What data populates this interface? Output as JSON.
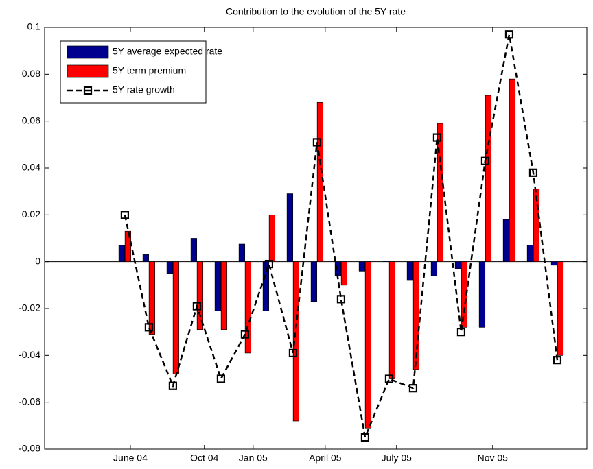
{
  "chart_data": {
    "type": "bar",
    "title": "Contribution to the evolution of the 5Y rate",
    "x": [
      1,
      2,
      3,
      4,
      5,
      6,
      7,
      8,
      9,
      10,
      11,
      12,
      13,
      14,
      15,
      16,
      17,
      18,
      19
    ],
    "series": [
      {
        "name": "5Y average expected rate",
        "color": "#00008f",
        "type": "bar",
        "values": [
          0.007,
          0.003,
          -0.005,
          0.01,
          -0.021,
          0.0075,
          -0.021,
          0.029,
          -0.017,
          -0.006,
          -0.004,
          0.0003,
          -0.008,
          -0.006,
          -0.003,
          -0.028,
          0.018,
          0.007,
          -0.0015
        ]
      },
      {
        "name": "5Y term premium",
        "color": "#ff0000",
        "type": "bar",
        "values": [
          0.013,
          -0.031,
          -0.048,
          -0.029,
          -0.029,
          -0.039,
          0.02,
          -0.068,
          0.068,
          -0.01,
          -0.071,
          -0.05,
          -0.046,
          0.059,
          -0.028,
          0.071,
          0.078,
          0.031,
          -0.04
        ]
      },
      {
        "name": "5Y rate growth",
        "color": "#000000",
        "type": "line",
        "values": [
          0.02,
          -0.028,
          -0.053,
          -0.019,
          -0.05,
          -0.031,
          -0.001,
          -0.039,
          0.051,
          -0.016,
          -0.075,
          -0.05,
          -0.054,
          0.053,
          -0.03,
          0.043,
          0.097,
          0.038,
          -0.042
        ]
      }
    ],
    "xlim": [
      -2.34,
      20.23
    ],
    "xticks": [
      {
        "value": 1.23,
        "label": "June 04"
      },
      {
        "value": 4.31,
        "label": "Oct 04"
      },
      {
        "value": 6.34,
        "label": "Jan 05"
      },
      {
        "value": 9.34,
        "label": "April 05"
      },
      {
        "value": 12.31,
        "label": "July 05"
      },
      {
        "value": 16.31,
        "label": "Nov 05"
      }
    ],
    "ylim": [
      -0.08,
      0.1
    ],
    "yticks": [
      -0.08,
      -0.06,
      -0.04,
      -0.02,
      0,
      0.02,
      0.04,
      0.06,
      0.08,
      0.1
    ],
    "legend": "upper left"
  }
}
